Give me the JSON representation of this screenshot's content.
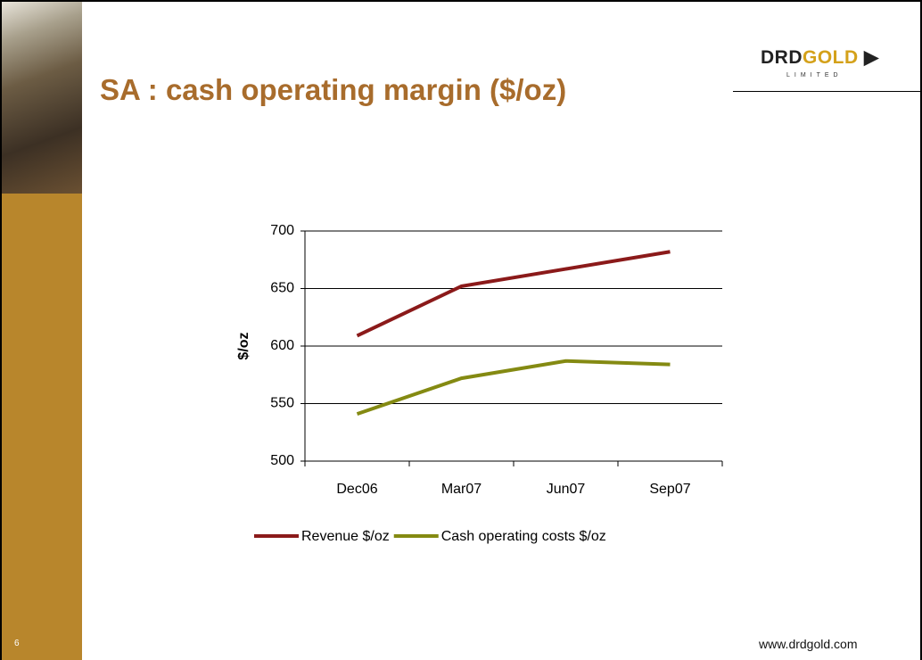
{
  "slide": {
    "number": "6",
    "logo_main": "DRD",
    "logo_accent": "GOLD",
    "logo_sub": "LIMITED",
    "footer": "www.drdgold.com"
  },
  "chart_data": {
    "type": "line",
    "title": "SA : cash operating margin ($/oz)",
    "y_label": "$/oz",
    "categories": [
      "Dec06",
      "Mar07",
      "Jun07",
      "Sep07"
    ],
    "series": [
      {
        "name": "Revenue $/oz",
        "color": "#8b1a1a",
        "values": [
          609,
          652,
          667,
          682
        ]
      },
      {
        "name": "Cash operating costs $/oz",
        "color": "#848a12",
        "values": [
          541,
          572,
          587,
          584
        ]
      }
    ],
    "ylim": [
      500,
      700
    ],
    "yticks": [
      500,
      550,
      600,
      650,
      700
    ],
    "grid": true
  }
}
